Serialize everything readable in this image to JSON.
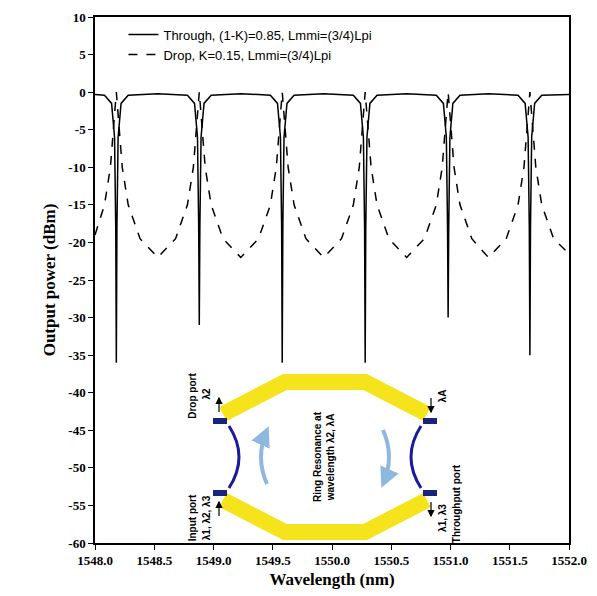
{
  "chart_data": {
    "type": "line",
    "x_label": "Wavelength (nm)",
    "y_label": "Output power (dBm)",
    "xlim": [
      1548.0,
      1552.0
    ],
    "ylim": [
      -60,
      10
    ],
    "xticks": [
      {
        "value": 1548.0,
        "label": "1548.0"
      },
      {
        "value": 1548.5,
        "label": "1548.5"
      },
      {
        "value": 1549.0,
        "label": "1549.0"
      },
      {
        "value": 1549.5,
        "label": "1549.5"
      },
      {
        "value": 1550.0,
        "label": "1550.0"
      },
      {
        "value": 1550.5,
        "label": "1550.5"
      },
      {
        "value": 1551.0,
        "label": "1551.0"
      },
      {
        "value": 1551.5,
        "label": "1551.5"
      },
      {
        "value": 1552.0,
        "label": "1552.0"
      }
    ],
    "yticks": [
      -60,
      -55,
      -50,
      -45,
      -40,
      -35,
      -30,
      -25,
      -20,
      -15,
      -10,
      -5,
      0,
      5,
      10
    ],
    "grid": false,
    "legend": "upper left",
    "series": [
      {
        "name": "Through, (1-K)=0.85, Lmmi=(3/4)Lpi",
        "color": "#000000",
        "line_style": "solid",
        "x": [
          1548.0,
          1548.08,
          1548.14,
          1548.165,
          1548.175,
          1548.18,
          1548.185,
          1548.195,
          1548.22,
          1548.28,
          1548.53,
          1548.78,
          1548.84,
          1548.865,
          1548.875,
          1548.88,
          1548.885,
          1548.895,
          1548.92,
          1548.98,
          1549.23,
          1549.48,
          1549.54,
          1549.565,
          1549.575,
          1549.58,
          1549.585,
          1549.595,
          1549.62,
          1549.68,
          1549.93,
          1550.18,
          1550.24,
          1550.265,
          1550.275,
          1550.28,
          1550.285,
          1550.295,
          1550.32,
          1550.38,
          1550.63,
          1550.88,
          1550.94,
          1550.965,
          1550.975,
          1550.98,
          1550.985,
          1550.995,
          1551.02,
          1551.08,
          1551.32,
          1551.57,
          1551.63,
          1551.655,
          1551.665,
          1551.67,
          1551.675,
          1551.685,
          1551.71,
          1551.77,
          1552.0
        ],
        "values": [
          -0.3,
          -0.4,
          -1.5,
          -6,
          -18,
          -36,
          -18,
          -6,
          -1.5,
          -0.4,
          -0.2,
          -0.4,
          -1.5,
          -6,
          -18,
          -31,
          -18,
          -6,
          -1.5,
          -0.4,
          -0.2,
          -0.4,
          -1.5,
          -6,
          -18,
          -36,
          -18,
          -6,
          -1.5,
          -0.4,
          -0.2,
          -0.4,
          -1.5,
          -6,
          -18,
          -36,
          -18,
          -6,
          -1.5,
          -0.4,
          -0.2,
          -0.4,
          -1.5,
          -6,
          -18,
          -30,
          -18,
          -6,
          -1.5,
          -0.4,
          -0.2,
          -0.4,
          -1.5,
          -6,
          -18,
          -35,
          -18,
          -6,
          -1.5,
          -0.4,
          -0.3
        ]
      },
      {
        "name": "Drop, K=0.15, Lmmi=(3/4)Lpi",
        "color": "#000000",
        "line_style": "dash",
        "x": [
          1548.0,
          1548.08,
          1548.13,
          1548.16,
          1548.18,
          1548.2,
          1548.23,
          1548.28,
          1548.38,
          1548.53,
          1548.68,
          1548.78,
          1548.83,
          1548.86,
          1548.88,
          1548.9,
          1548.93,
          1548.98,
          1549.08,
          1549.23,
          1549.38,
          1549.48,
          1549.53,
          1549.56,
          1549.58,
          1549.6,
          1549.63,
          1549.68,
          1549.78,
          1549.93,
          1550.08,
          1550.18,
          1550.23,
          1550.26,
          1550.28,
          1550.3,
          1550.33,
          1550.38,
          1550.48,
          1550.63,
          1550.78,
          1550.88,
          1550.93,
          1550.96,
          1550.98,
          1551.0,
          1551.03,
          1551.08,
          1551.18,
          1551.32,
          1551.47,
          1551.57,
          1551.62,
          1551.65,
          1551.67,
          1551.69,
          1551.72,
          1551.77,
          1551.87,
          1552.0
        ],
        "values": [
          -19,
          -15,
          -10,
          -4,
          0,
          -4,
          -10,
          -15,
          -19.5,
          -22,
          -19.5,
          -15,
          -10,
          -4,
          0,
          -4,
          -10,
          -15,
          -19.5,
          -22,
          -19.5,
          -15,
          -10,
          -4,
          0,
          -4,
          -10,
          -15,
          -19.5,
          -22,
          -19.5,
          -15,
          -10,
          -4,
          0,
          -4,
          -10,
          -15,
          -19.5,
          -22,
          -19.5,
          -15,
          -10,
          -4,
          0,
          -4,
          -10,
          -15,
          -19.5,
          -22,
          -19.5,
          -15,
          -10,
          -4,
          0,
          -4,
          -10,
          -15,
          -19.5,
          -21.5
        ]
      }
    ]
  },
  "inset_diagram": {
    "drop_port": "Drop port",
    "drop_wavelength": "λ2",
    "input_port": "Input port",
    "input_wavelengths": "λ1, λ2, λ3",
    "ring_text": [
      "Ring Resonance at",
      "wavelength  λ2, λA"
    ],
    "add_wavelength": "λA",
    "through_port": "Throughput port",
    "through_wavelengths": "λ1, λ3"
  }
}
